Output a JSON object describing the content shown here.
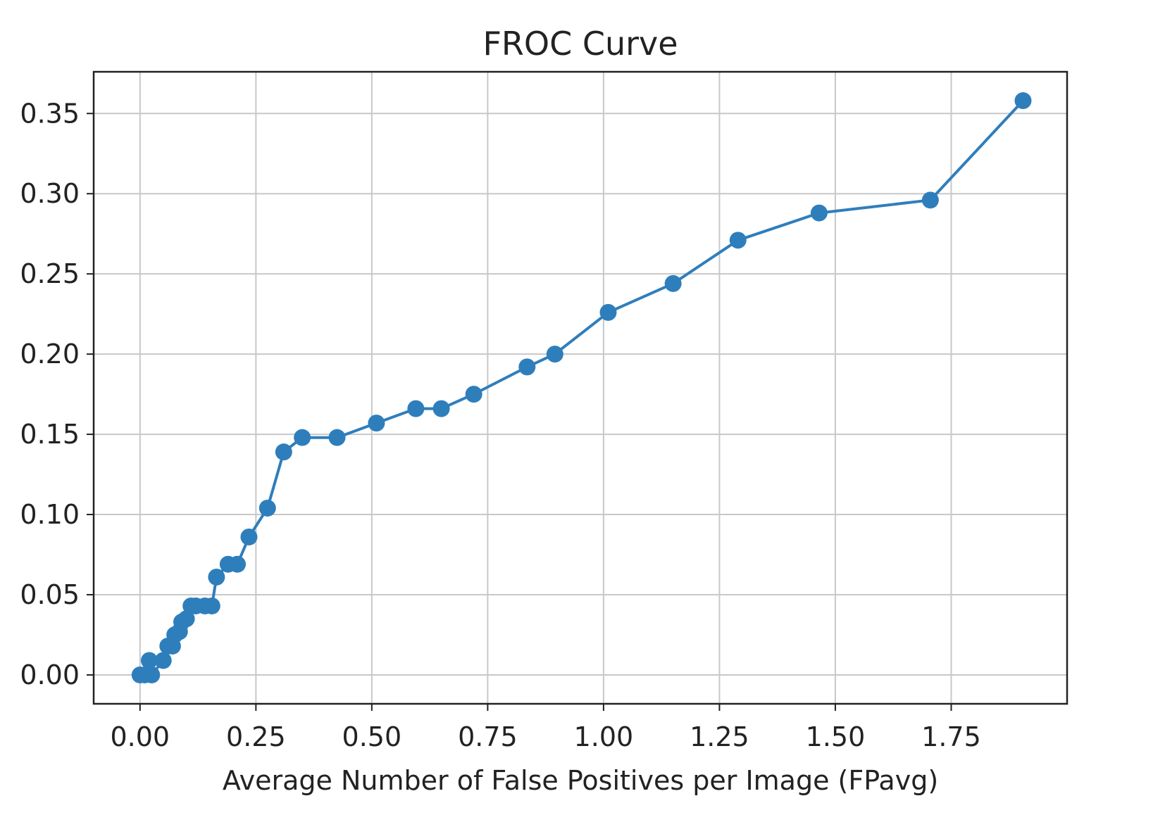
{
  "chart_data": {
    "type": "line",
    "title": "FROC Curve",
    "xlabel": "Average Number of False Positives per Image (FPavg)",
    "ylabel": "",
    "xlim": [
      -0.1,
      2.0
    ],
    "ylim": [
      -0.018,
      0.376
    ],
    "grid": true,
    "line_color": "#2f7ebc",
    "x_ticks": [
      0.0,
      0.25,
      0.5,
      0.75,
      1.0,
      1.25,
      1.5,
      1.75
    ],
    "x_tick_labels": [
      "0.00",
      "0.25",
      "0.50",
      "0.75",
      "1.00",
      "1.25",
      "1.50",
      "1.75"
    ],
    "y_ticks": [
      0.0,
      0.05,
      0.1,
      0.15,
      0.2,
      0.25,
      0.3,
      0.35
    ],
    "y_tick_labels": [
      "0.00",
      "0.05",
      "0.10",
      "0.15",
      "0.20",
      "0.25",
      "0.30",
      "0.35"
    ],
    "series": [
      {
        "x": [
          0.0,
          0.01,
          0.02,
          0.025,
          0.05,
          0.06,
          0.07,
          0.075,
          0.085,
          0.09,
          0.1,
          0.11,
          0.12,
          0.14,
          0.155,
          0.165,
          0.19,
          0.21,
          0.235,
          0.275,
          0.31,
          0.35,
          0.425,
          0.51,
          0.595,
          0.65,
          0.72,
          0.835,
          0.895,
          1.01,
          1.15,
          1.29,
          1.465,
          1.705,
          1.905
        ],
        "y": [
          0.0,
          0.0,
          0.009,
          0.0,
          0.009,
          0.018,
          0.018,
          0.025,
          0.027,
          0.033,
          0.035,
          0.043,
          0.043,
          0.043,
          0.043,
          0.061,
          0.069,
          0.069,
          0.086,
          0.104,
          0.139,
          0.148,
          0.148,
          0.157,
          0.166,
          0.166,
          0.175,
          0.192,
          0.2,
          0.226,
          0.244,
          0.271,
          0.288,
          0.296,
          0.358
        ]
      }
    ]
  }
}
